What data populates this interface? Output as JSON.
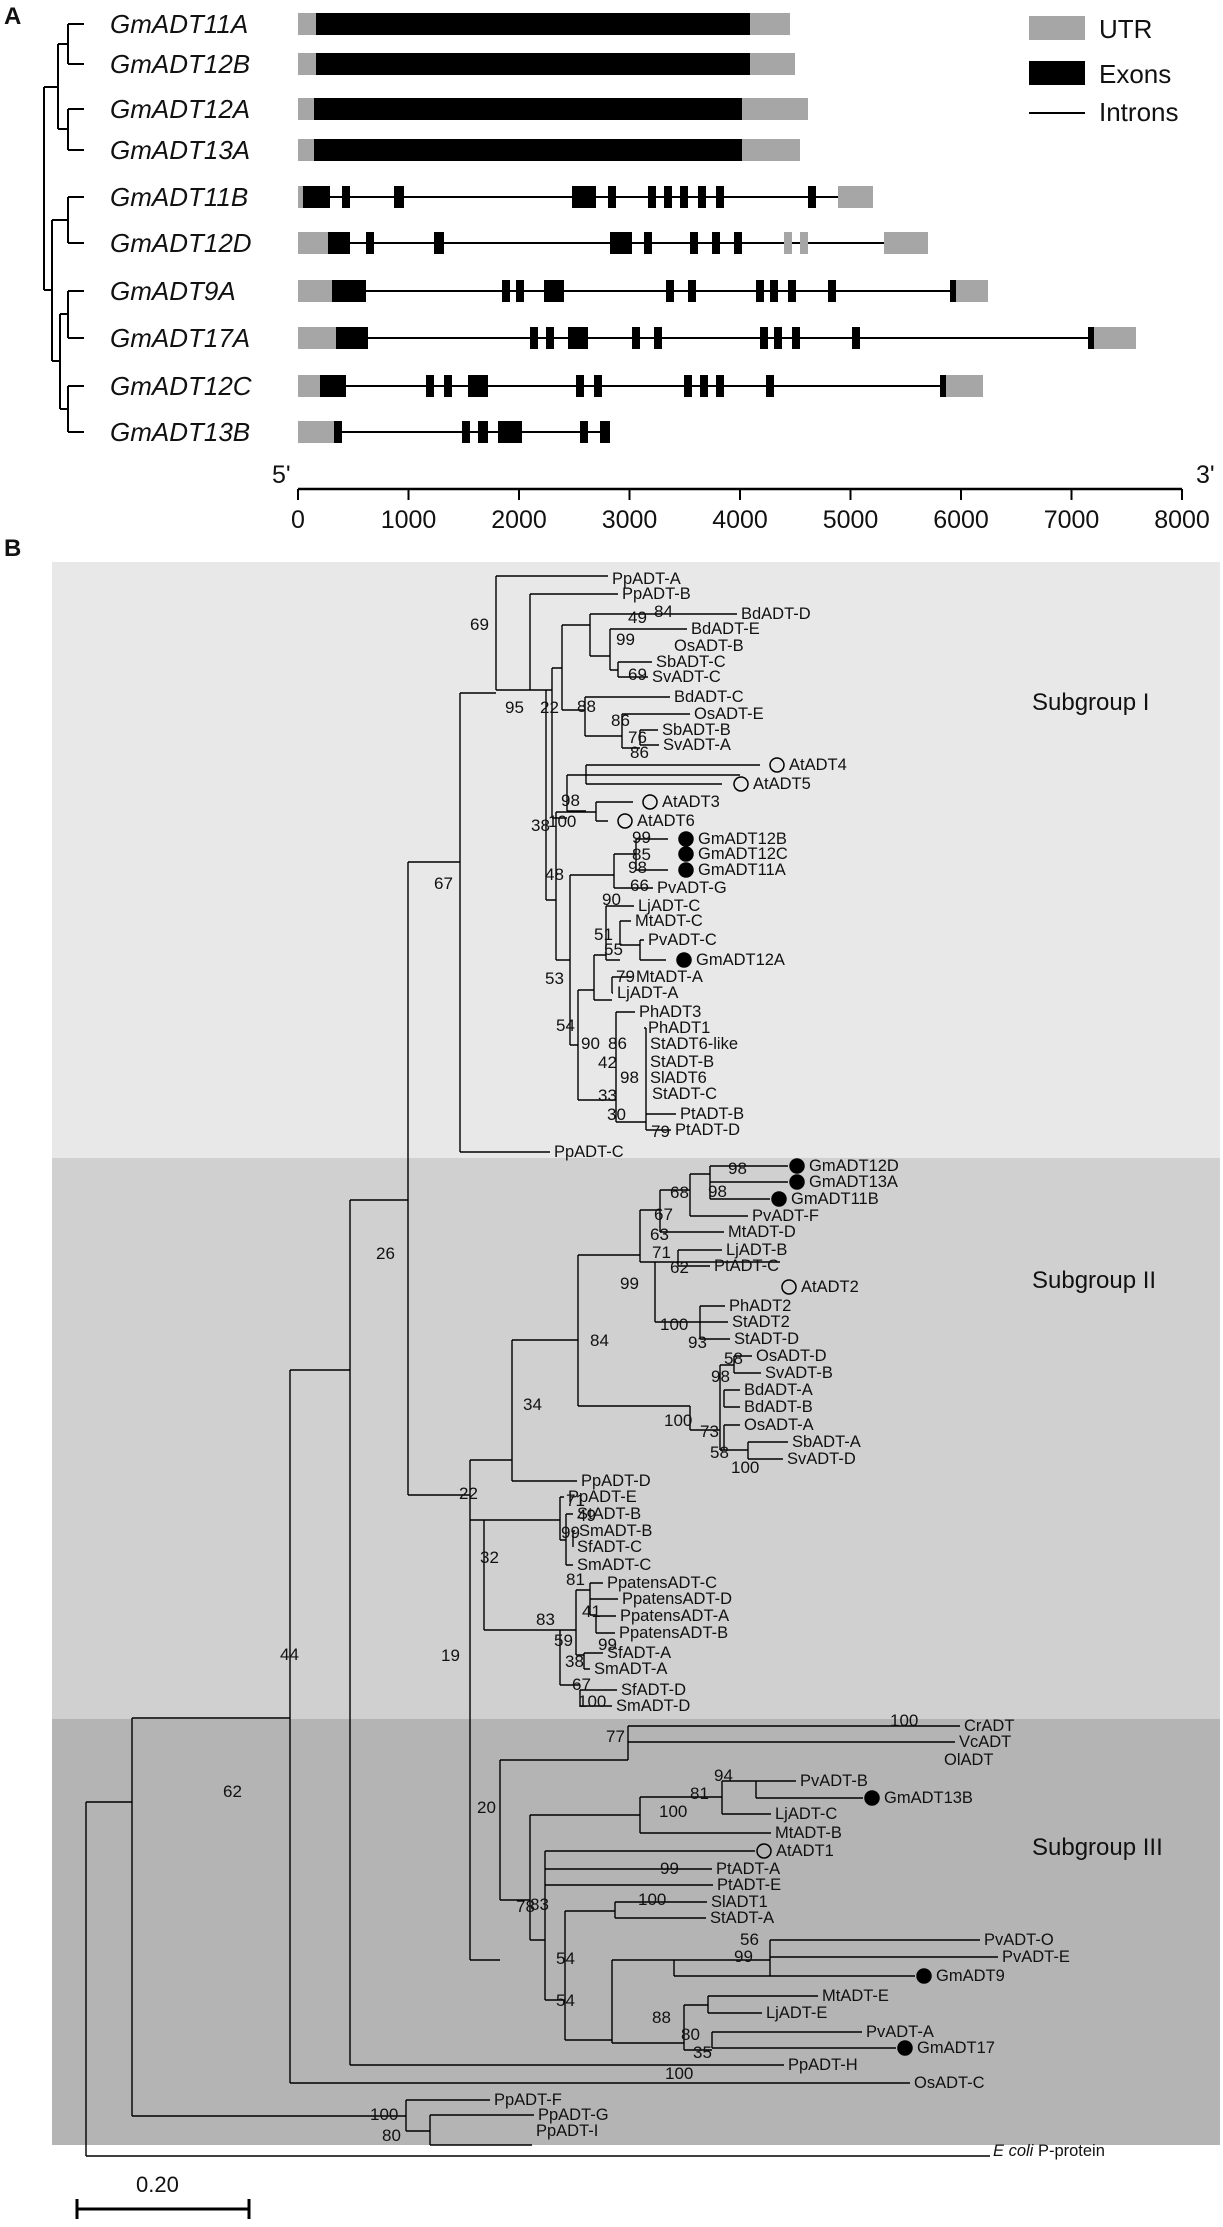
{
  "panelA": {
    "letter": "A",
    "genes": [
      "GmADT11A",
      "GmADT12B",
      "GmADT12A",
      "GmADT13A",
      "GmADT11B",
      "GmADT12D",
      "GmADT9A",
      "GmADT17A",
      "GmADT12C",
      "GmADT13B"
    ],
    "legend": [
      {
        "label": "UTR",
        "color": "#a6a6a6"
      },
      {
        "label": "Exons",
        "color": "#000000"
      },
      {
        "label": "Introns",
        "color": "#000000"
      }
    ],
    "axis": {
      "left_label": "5'",
      "right_label": "3'",
      "ticks": [
        "0",
        "1000",
        "2000",
        "3000",
        "4000",
        "5000",
        "6000",
        "7000",
        "8000"
      ]
    }
  },
  "panelB": {
    "letter": "B",
    "subgroups": [
      "Subgroup I",
      "Subgroup II",
      "Subgroup III"
    ],
    "subgroup_colors": [
      "#e8e8e8",
      "#d0d0d0",
      "#b4b4b4"
    ],
    "scale_label": "0.20",
    "outgroup_label_italic": "E coli",
    "outgroup_label_rest": " P-protein"
  }
}
